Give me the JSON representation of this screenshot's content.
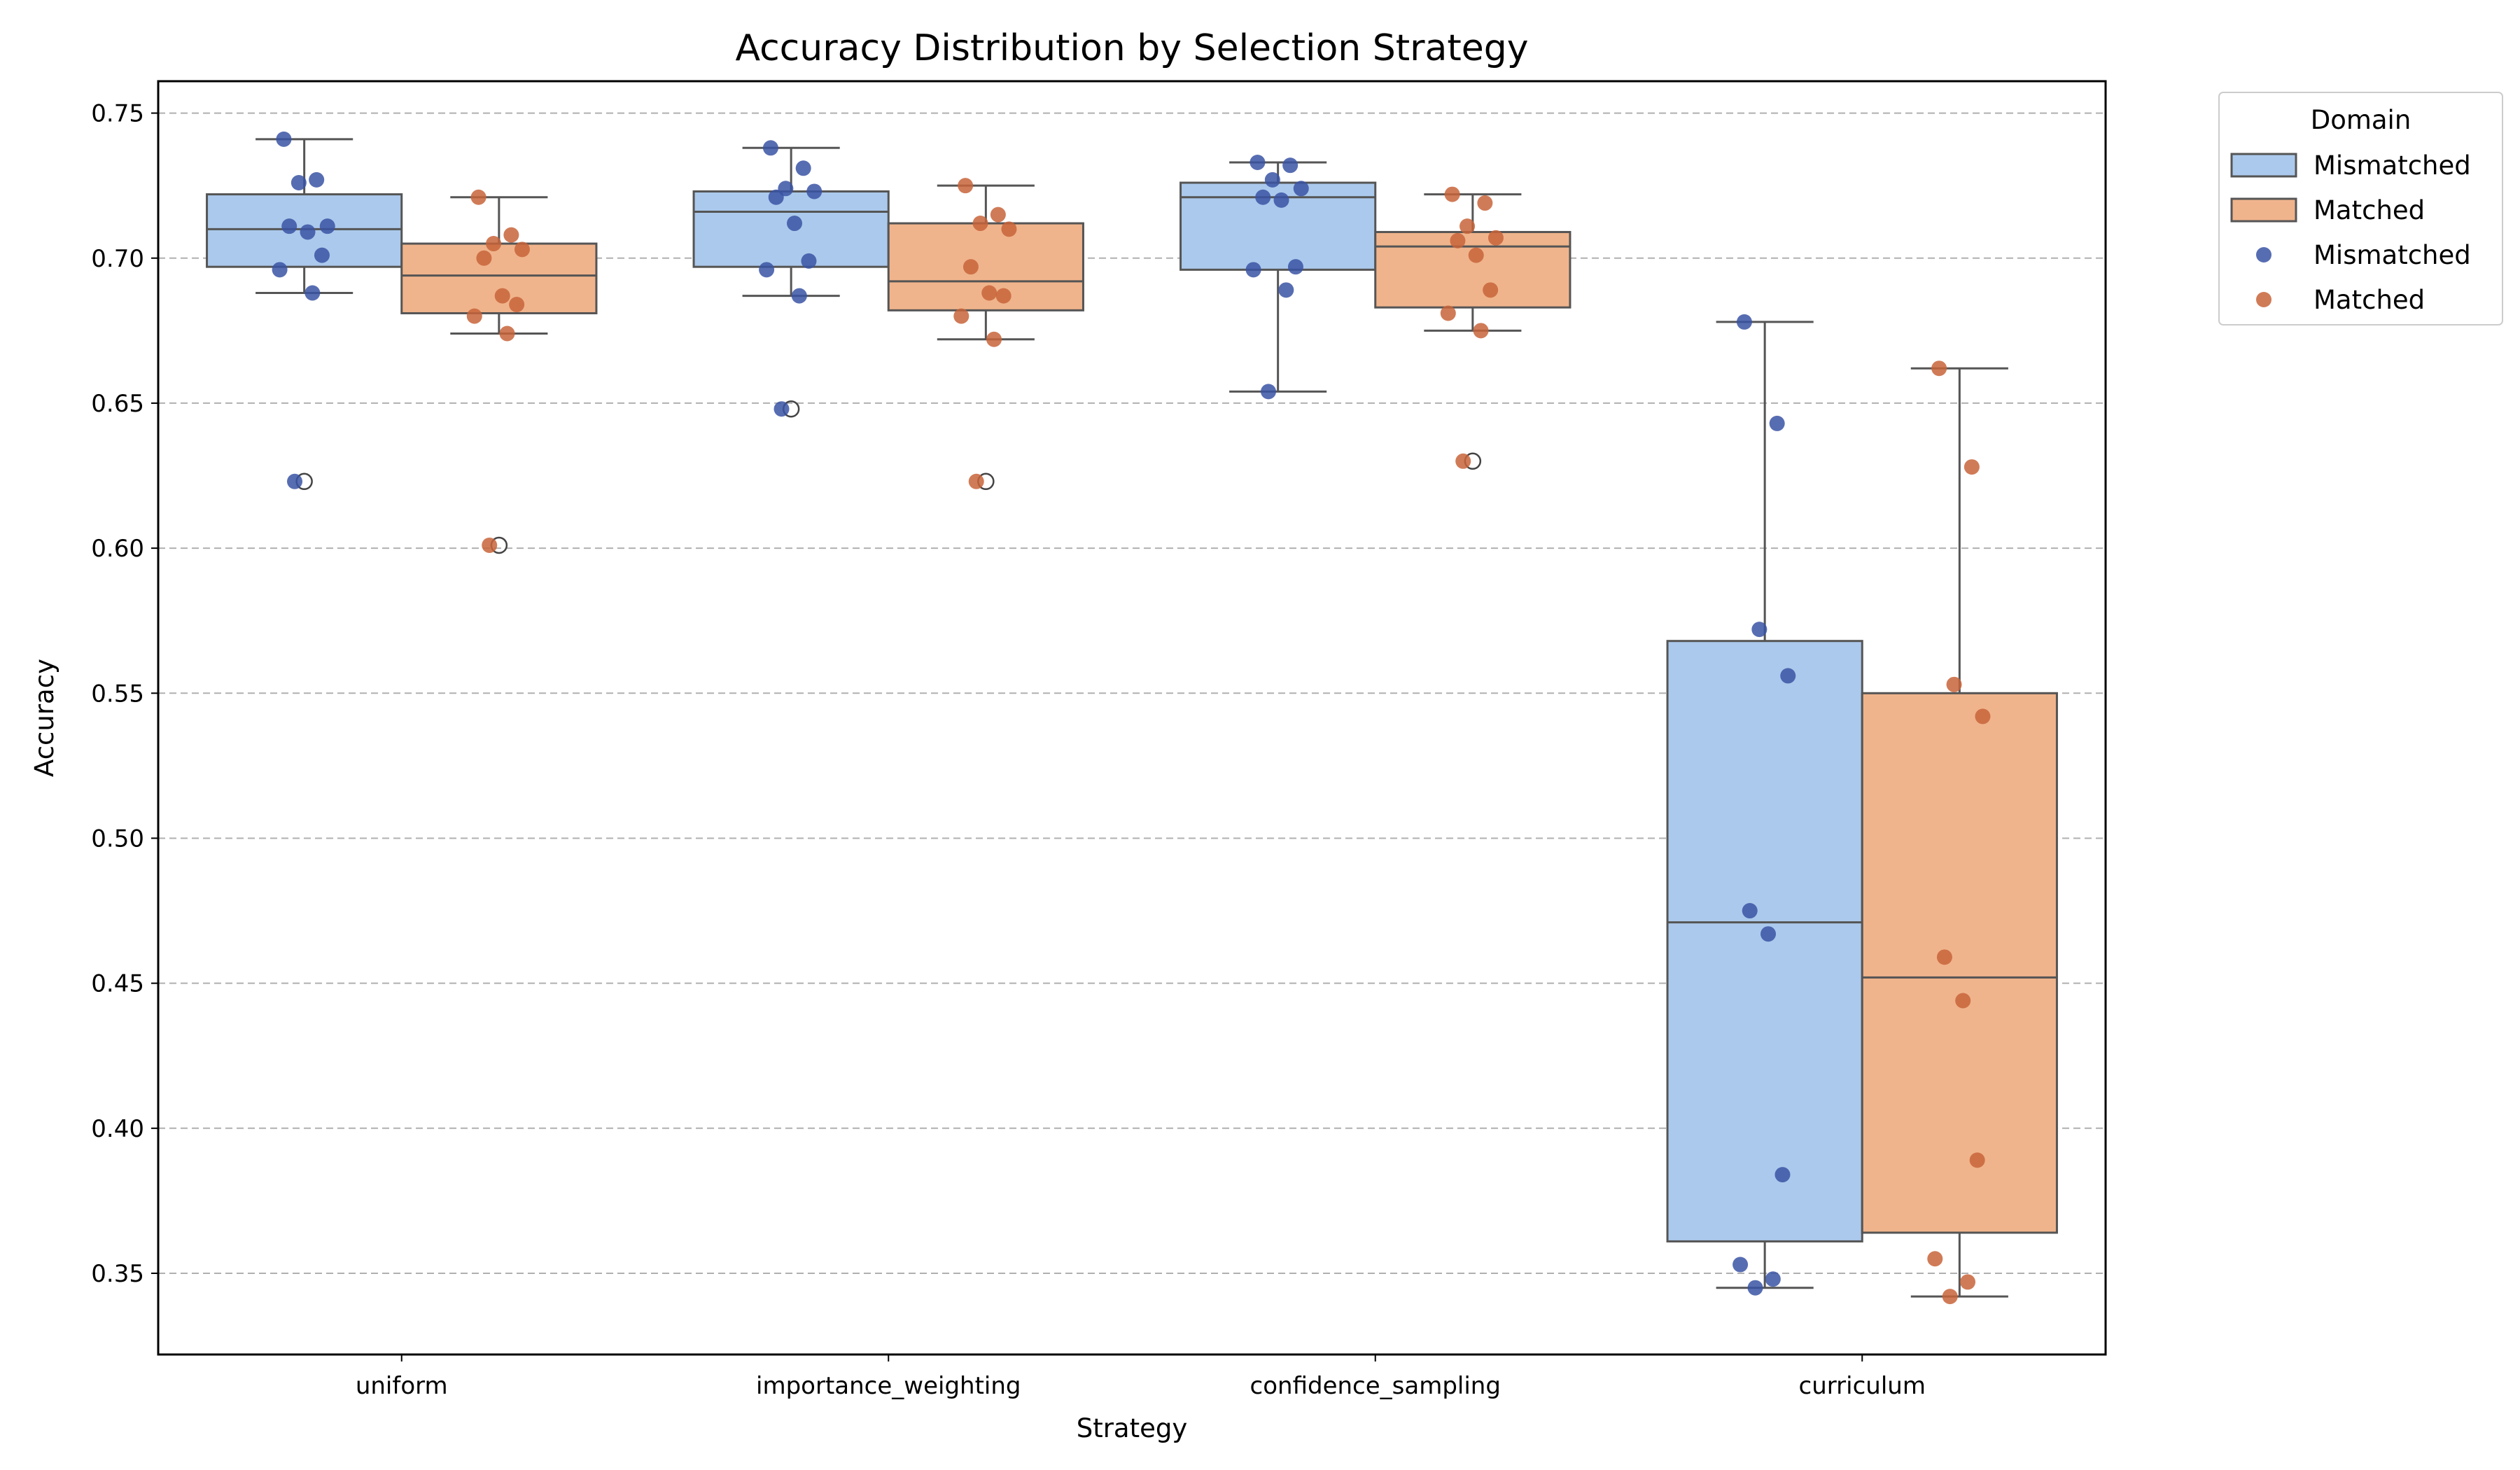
{
  "chart_data": {
    "type": "box",
    "title": "Accuracy Distribution by Selection Strategy",
    "xlabel": "Strategy",
    "ylabel": "Accuracy",
    "ylim": [
      0.322,
      0.761
    ],
    "yticks": [
      "0.35",
      "0.40",
      "0.45",
      "0.50",
      "0.55",
      "0.60",
      "0.65",
      "0.70",
      "0.75"
    ],
    "grid": "horizontal-dashed",
    "categories": [
      "uniform",
      "importance_weighting",
      "confidence_sampling",
      "curriculum"
    ],
    "legend": {
      "title": "Domain",
      "position": "outside-top-right",
      "entries": [
        {
          "label": "Mismatched",
          "kind": "box"
        },
        {
          "label": "Matched",
          "kind": "box"
        },
        {
          "label": "Mismatched",
          "kind": "point"
        },
        {
          "label": "Matched",
          "kind": "point"
        }
      ]
    },
    "series": [
      {
        "name": "Mismatched",
        "box_color": "#abc9ec",
        "point_color": "#3a53a4",
        "boxes": [
          {
            "q1": 0.697,
            "median": 0.71,
            "q3": 0.722,
            "whisker_low": 0.688,
            "whisker_high": 0.741,
            "outliers": [
              0.623
            ]
          },
          {
            "q1": 0.697,
            "median": 0.716,
            "q3": 0.723,
            "whisker_low": 0.687,
            "whisker_high": 0.738,
            "outliers": [
              0.648
            ]
          },
          {
            "q1": 0.696,
            "median": 0.721,
            "q3": 0.726,
            "whisker_low": 0.654,
            "whisker_high": 0.733,
            "outliers": []
          },
          {
            "q1": 0.361,
            "median": 0.471,
            "q3": 0.568,
            "whisker_low": 0.345,
            "whisker_high": 0.678,
            "outliers": []
          }
        ],
        "points": [
          [
            0.741,
            0.727,
            0.726,
            0.711,
            0.711,
            0.709,
            0.701,
            0.696,
            0.688,
            0.623
          ],
          [
            0.738,
            0.731,
            0.724,
            0.723,
            0.721,
            0.712,
            0.699,
            0.696,
            0.687,
            0.648
          ],
          [
            0.733,
            0.732,
            0.727,
            0.724,
            0.721,
            0.72,
            0.697,
            0.696,
            0.689,
            0.654
          ],
          [
            0.678,
            0.643,
            0.572,
            0.556,
            0.475,
            0.467,
            0.384,
            0.353,
            0.348,
            0.345
          ]
        ]
      },
      {
        "name": "Matched",
        "box_color": "#f0b48c",
        "point_color": "#c8643a",
        "boxes": [
          {
            "q1": 0.681,
            "median": 0.694,
            "q3": 0.705,
            "whisker_low": 0.674,
            "whisker_high": 0.721,
            "outliers": [
              0.601
            ]
          },
          {
            "q1": 0.682,
            "median": 0.692,
            "q3": 0.712,
            "whisker_low": 0.672,
            "whisker_high": 0.725,
            "outliers": [
              0.623
            ]
          },
          {
            "q1": 0.683,
            "median": 0.704,
            "q3": 0.709,
            "whisker_low": 0.675,
            "whisker_high": 0.722,
            "outliers": [
              0.63
            ]
          },
          {
            "q1": 0.364,
            "median": 0.452,
            "q3": 0.55,
            "whisker_low": 0.342,
            "whisker_high": 0.662,
            "outliers": []
          }
        ],
        "points": [
          [
            0.721,
            0.708,
            0.705,
            0.703,
            0.7,
            0.687,
            0.684,
            0.68,
            0.674,
            0.601
          ],
          [
            0.725,
            0.715,
            0.712,
            0.71,
            0.697,
            0.688,
            0.687,
            0.68,
            0.672,
            0.623
          ],
          [
            0.722,
            0.719,
            0.711,
            0.707,
            0.706,
            0.701,
            0.689,
            0.681,
            0.675,
            0.63
          ],
          [
            0.662,
            0.628,
            0.553,
            0.542,
            0.459,
            0.444,
            0.389,
            0.355,
            0.347,
            0.342
          ]
        ]
      }
    ]
  }
}
